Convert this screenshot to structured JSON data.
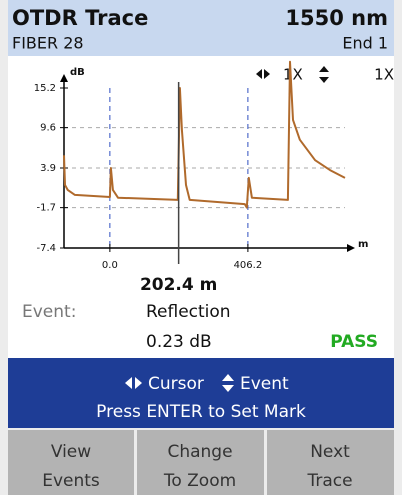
{
  "header": {
    "title": "OTDR Trace",
    "wavelength": "1550 nm",
    "fiber": "FIBER 28",
    "end": "End 1"
  },
  "chart_data": {
    "type": "line",
    "y_label": "dB",
    "x_label": "m",
    "zoom": [
      "1X",
      "1X"
    ],
    "xlim": [
      -135,
      692
    ],
    "ylim": [
      -7.4,
      15.2
    ],
    "xticks": [
      {
        "value": 0,
        "label": "0.0"
      },
      406.2
    ],
    "yticks": [
      15.2,
      9.6,
      3.9,
      -1.7,
      -7.4
    ],
    "grid": true,
    "cursor": {
      "value": 202.4,
      "label": "202.4 m"
    },
    "series": [
      {
        "color": "#b06a2c",
        "x": [
          -135,
          -132,
          -124,
          -103,
          0,
          3,
          9,
          24,
          200,
          206,
          212,
          224,
          235,
          397,
          403,
          409,
          418,
          524,
          530,
          539,
          559,
          604,
          648,
          692
        ],
        "values": [
          5.7,
          1.5,
          0.8,
          0.1,
          -0.2,
          3.9,
          0.8,
          -0.3,
          -0.6,
          15.2,
          9.3,
          1.5,
          -0.6,
          -1.2,
          -1.7,
          2.5,
          -0.3,
          -0.6,
          18.9,
          10.7,
          7.9,
          5.0,
          3.6,
          2.5
        ]
      }
    ]
  },
  "event": {
    "label": "Event:",
    "type": "Reflection",
    "loss": "0.23 dB",
    "status": "PASS"
  },
  "help": {
    "cursor": "Cursor",
    "event": "Event",
    "hint": "Press ENTER to Set Mark"
  },
  "buttons": [
    {
      "lines": [
        "View",
        "Events"
      ]
    },
    {
      "lines": [
        "Change",
        "To Zoom"
      ]
    },
    {
      "lines": [
        "Next",
        "Trace"
      ]
    }
  ]
}
